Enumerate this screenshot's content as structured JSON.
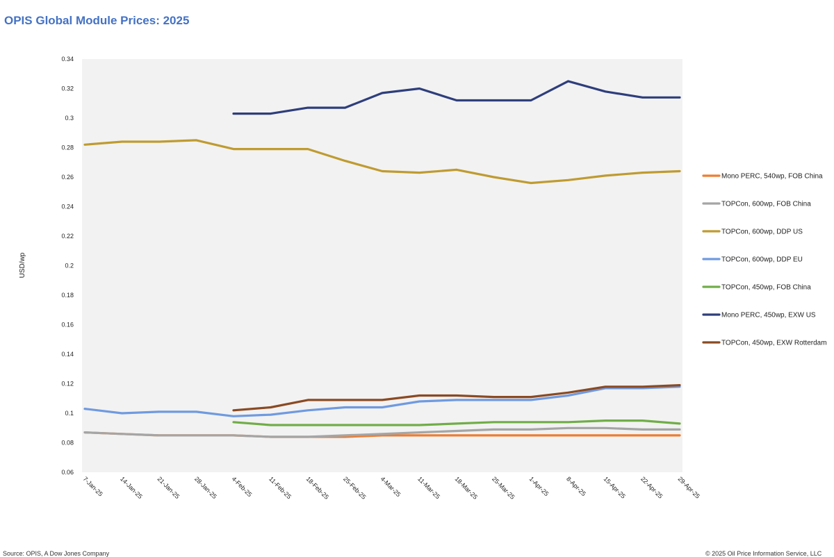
{
  "header": {
    "title": "OPIS Global Module Prices: 2025"
  },
  "footer": {
    "source": "Source: OPIS, A Dow Jones Company",
    "copyright": "© 2025 Oil Price Information Service, LLC"
  },
  "chart_data": {
    "type": "line",
    "title": "OPIS Global Module Prices: 2025",
    "xlabel": "",
    "ylabel": "USD/wp",
    "ylim": [
      0.06,
      0.34
    ],
    "yticks": [
      0.06,
      0.08,
      0.1,
      0.12,
      0.14,
      0.16,
      0.18,
      0.2,
      0.22,
      0.24,
      0.26,
      0.28,
      0.3,
      0.32,
      0.34
    ],
    "grid": false,
    "legend": "right",
    "categories": [
      "7-Jan-25",
      "14-Jan-25",
      "21-Jan-25",
      "28-Jan-25",
      "4-Feb-25",
      "11-Feb-25",
      "18-Feb-25",
      "25-Feb-25",
      "4-Mar-25",
      "11-Mar-25",
      "18-Mar-25",
      "25-Mar-25",
      "1-Apr-25",
      "8-Apr-25",
      "15-Apr-25",
      "22-Apr-25",
      "29-Apr-25"
    ],
    "series": [
      {
        "name": "Mono PERC, 540wp, FOB China",
        "color": "#ed7d31",
        "values": [
          0.087,
          0.086,
          0.085,
          0.085,
          0.085,
          0.084,
          0.084,
          0.084,
          0.085,
          0.085,
          0.085,
          0.085,
          0.085,
          0.085,
          0.085,
          0.085,
          0.085
        ]
      },
      {
        "name": "TOPCon, 600wp, FOB China",
        "color": "#a5a5a5",
        "values": [
          0.087,
          0.086,
          0.085,
          0.085,
          0.085,
          0.084,
          0.084,
          0.085,
          0.086,
          0.087,
          0.088,
          0.089,
          0.089,
          0.09,
          0.09,
          0.089,
          0.089
        ]
      },
      {
        "name": "TOPCon, 600wp, DDP US",
        "color": "#bf9b30",
        "values": [
          0.282,
          0.284,
          0.284,
          0.285,
          0.279,
          0.279,
          0.279,
          0.271,
          0.264,
          0.263,
          0.265,
          0.26,
          0.256,
          0.258,
          0.261,
          0.263,
          0.264
        ]
      },
      {
        "name": "TOPCon, 600wp, DDP EU",
        "color": "#6f9ae0",
        "values": [
          0.103,
          0.1,
          0.101,
          0.101,
          0.098,
          0.099,
          0.102,
          0.104,
          0.104,
          0.108,
          0.109,
          0.109,
          0.109,
          0.112,
          0.117,
          0.117,
          0.118
        ]
      },
      {
        "name": "TOPCon, 450wp, FOB China",
        "color": "#70ad47",
        "values": [
          null,
          null,
          null,
          null,
          0.094,
          0.092,
          0.092,
          0.092,
          0.092,
          0.092,
          0.093,
          0.094,
          0.094,
          0.094,
          0.095,
          0.095,
          0.093
        ]
      },
      {
        "name": "Mono PERC, 450wp, EXW US",
        "color": "#2e3e7c",
        "values": [
          null,
          null,
          null,
          null,
          0.303,
          0.303,
          0.307,
          0.307,
          0.317,
          0.32,
          0.312,
          0.312,
          0.312,
          0.325,
          0.318,
          0.314,
          0.314
        ]
      },
      {
        "name": "TOPCon, 450wp, EXW Rotterdam",
        "color": "#8b4a22",
        "values": [
          null,
          null,
          null,
          null,
          0.102,
          0.104,
          0.109,
          0.109,
          0.109,
          0.112,
          0.112,
          0.111,
          0.111,
          0.114,
          0.118,
          0.118,
          0.119
        ]
      }
    ]
  }
}
